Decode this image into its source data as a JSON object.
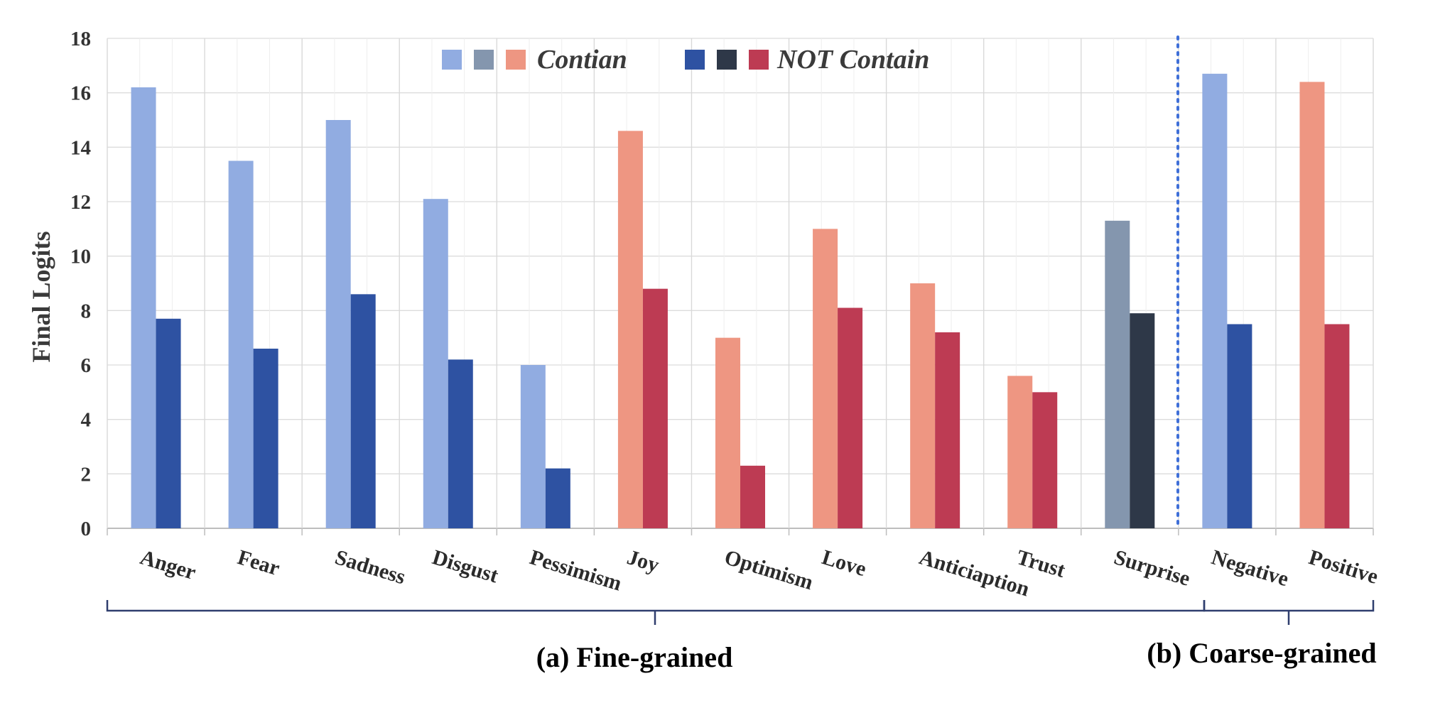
{
  "chart_data": {
    "type": "bar",
    "ylabel": "Final Logits",
    "ylim": [
      0,
      18
    ],
    "yticks": [
      "0",
      "2",
      "4",
      "6",
      "8",
      "10",
      "12",
      "14",
      "16",
      "18"
    ],
    "grid": true,
    "legend": {
      "placement": "top",
      "entries": [
        {
          "label": "Contian",
          "colors": [
            "#91ACE1",
            "#8496AE",
            "#EE9682"
          ]
        },
        {
          "label": "NOT Contain",
          "colors": [
            "#2E52A2",
            "#2E3848",
            "#BD3B53"
          ]
        }
      ]
    },
    "categories": [
      "Anger",
      "Fear",
      "Sadness",
      "Disgust",
      "Pessimism",
      "Joy",
      "Optimism",
      "Love",
      "Anticiaption",
      "Trust",
      "Surprise",
      "Negative",
      "Positive"
    ],
    "series": [
      {
        "name": "Contian",
        "values": [
          16.2,
          13.5,
          15.0,
          12.1,
          6.0,
          14.6,
          7.0,
          11.0,
          9.0,
          5.6,
          11.3,
          16.7,
          16.4
        ]
      },
      {
        "name": "NOT Contain",
        "values": [
          7.7,
          6.6,
          8.6,
          6.2,
          2.2,
          8.8,
          2.3,
          8.1,
          7.2,
          5.0,
          7.9,
          7.5,
          7.5
        ]
      }
    ],
    "bar_colors": [
      [
        "#91ACE1",
        "#2E52A2"
      ],
      [
        "#91ACE1",
        "#2E52A2"
      ],
      [
        "#91ACE1",
        "#2E52A2"
      ],
      [
        "#91ACE1",
        "#2E52A2"
      ],
      [
        "#91ACE1",
        "#2E52A2"
      ],
      [
        "#EE9682",
        "#BD3B53"
      ],
      [
        "#EE9682",
        "#BD3B53"
      ],
      [
        "#EE9682",
        "#BD3B53"
      ],
      [
        "#EE9682",
        "#BD3B53"
      ],
      [
        "#EE9682",
        "#BD3B53"
      ],
      [
        "#8496AE",
        "#2E3848"
      ],
      [
        "#91ACE1",
        "#2E52A2"
      ],
      [
        "#EE9682",
        "#BD3B53"
      ]
    ],
    "groups": [
      {
        "label": "(a) Fine-grained",
        "categories": [
          "Anger",
          "Fear",
          "Sadness",
          "Disgust",
          "Pessimism",
          "Joy",
          "Optimism",
          "Love",
          "Anticiaption",
          "Trust",
          "Surprise"
        ]
      },
      {
        "label": "(b) Coarse-grained",
        "categories": [
          "Negative",
          "Positive"
        ]
      }
    ],
    "separator_color": "#3F6FD8"
  }
}
